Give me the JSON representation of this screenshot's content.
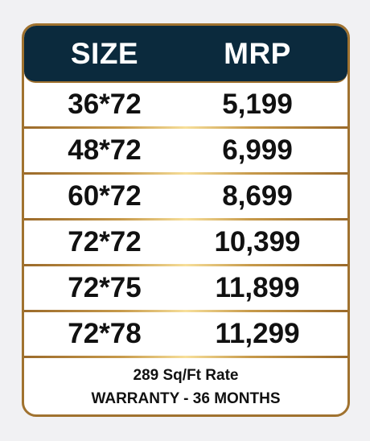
{
  "table": {
    "headers": {
      "size": "SIZE",
      "mrp": "MRP"
    },
    "rows": [
      {
        "size": "36*72",
        "mrp": "5,199"
      },
      {
        "size": "48*72",
        "mrp": "6,999"
      },
      {
        "size": "60*72",
        "mrp": "8,699"
      },
      {
        "size": "72*72",
        "mrp": "10,399"
      },
      {
        "size": "72*75",
        "mrp": "11,899"
      },
      {
        "size": "72*78",
        "mrp": "11,299"
      }
    ]
  },
  "footer": {
    "rate": "289 Sq/Ft Rate",
    "warranty": "WARRANTY - 36 MONTHS"
  },
  "colors": {
    "header_bg": "#0b2a3d",
    "border_gold": "#a0722f"
  }
}
